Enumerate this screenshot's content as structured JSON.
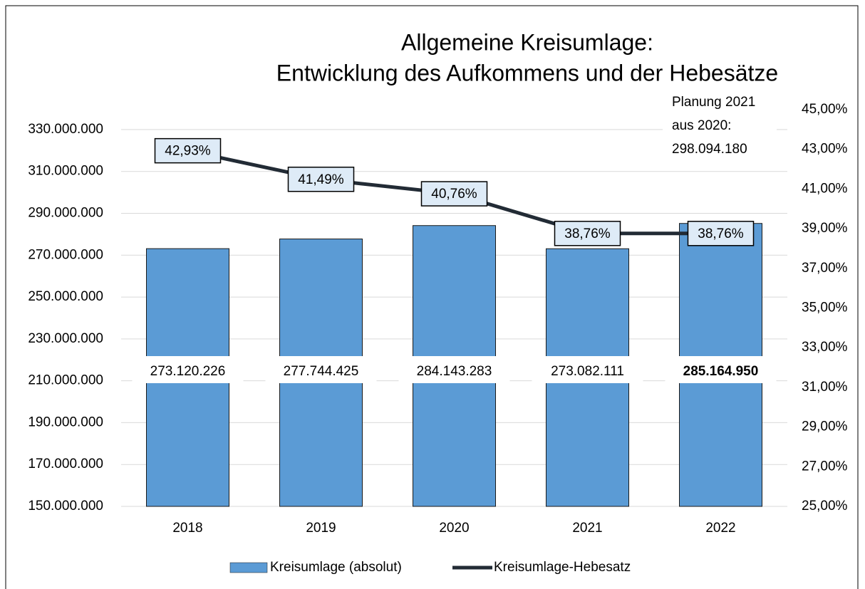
{
  "chart_data": {
    "type": "bar_line",
    "title": [
      "Allgemeine Kreisumlage:",
      "Entwicklung des Aufkommens und der Hebesätze"
    ],
    "annotation": [
      "Planung 2021",
      "aus 2020:",
      "298.094.180"
    ],
    "categories": [
      "2018",
      "2019",
      "2020",
      "2021",
      "2022"
    ],
    "series": [
      {
        "name": "Kreisumlage (absolut)",
        "type": "bar",
        "axis": "y",
        "color": "#5b9bd5",
        "values": [
          273120226,
          277744425,
          284143283,
          273082111,
          285164950
        ],
        "value_labels": [
          "273.120.226",
          "277.744.425",
          "284.143.283",
          "273.082.111",
          "285.164.950"
        ],
        "value_label_bold": [
          false,
          false,
          false,
          false,
          true
        ]
      },
      {
        "name": "Kreisumlage-Hebesatz",
        "type": "line",
        "axis": "y2",
        "color": "#222b35",
        "values": [
          42.93,
          41.49,
          40.76,
          38.76,
          38.76
        ],
        "value_labels": [
          "42,93%",
          "41,49%",
          "40,76%",
          "38,76%",
          "38,76%"
        ]
      }
    ],
    "ylim": [
      150000000,
      339500000
    ],
    "yticks": [
      {
        "value": 150000000,
        "label": "150.000.000"
      },
      {
        "value": 170000000,
        "label": "170.000.000"
      },
      {
        "value": 190000000,
        "label": "190.000.000"
      },
      {
        "value": 210000000,
        "label": "210.000.000"
      },
      {
        "value": 230000000,
        "label": "230.000.000"
      },
      {
        "value": 250000000,
        "label": "250.000.000"
      },
      {
        "value": 270000000,
        "label": "270.000.000"
      },
      {
        "value": 290000000,
        "label": "290.000.000"
      },
      {
        "value": 310000000,
        "label": "310.000.000"
      },
      {
        "value": 330000000,
        "label": "330.000.000"
      }
    ],
    "y2lim": [
      25,
      45
    ],
    "y2ticks": [
      {
        "value": 25,
        "label": "25,00%"
      },
      {
        "value": 27,
        "label": "27,00%"
      },
      {
        "value": 29,
        "label": "29,00%"
      },
      {
        "value": 31,
        "label": "31,00%"
      },
      {
        "value": 33,
        "label": "33,00%"
      },
      {
        "value": 35,
        "label": "35,00%"
      },
      {
        "value": 37,
        "label": "37,00%"
      },
      {
        "value": 39,
        "label": "39,00%"
      },
      {
        "value": 41,
        "label": "41,00%"
      },
      {
        "value": 43,
        "label": "43,00%"
      },
      {
        "value": 45,
        "label": "45,00%"
      }
    ],
    "grid": true,
    "legend": "bottom"
  }
}
